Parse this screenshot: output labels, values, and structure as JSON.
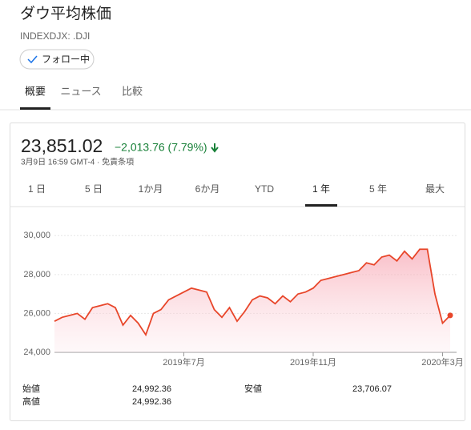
{
  "header": {
    "title": "ダウ平均株価",
    "symbol": "INDEXDJX: .DJI",
    "follow": "フォロー中"
  },
  "tabs": [
    "概要",
    "ニュース",
    "比較"
  ],
  "quote": {
    "price": "23,851.02",
    "change": "−2,013.76 (7.79%)",
    "time": "3月9日 16:59 GMT-4 · 免責条項"
  },
  "ranges": [
    "1 日",
    "5 日",
    "1か月",
    "6か月",
    "YTD",
    "1 年",
    "5 年",
    "最大"
  ],
  "chart_data": {
    "type": "line",
    "color": "#e8462a",
    "categories": [
      null,
      null,
      null,
      null,
      null,
      null,
      null,
      null,
      null,
      null,
      null,
      null,
      null,
      null,
      null,
      null,
      null,
      "2019年7月",
      null,
      null,
      null,
      null,
      null,
      null,
      null,
      null,
      null,
      null,
      null,
      null,
      null,
      null,
      null,
      null,
      "2019年11月",
      null,
      null,
      null,
      null,
      null,
      null,
      null,
      null,
      null,
      null,
      null,
      null,
      null,
      null,
      null,
      null,
      "2020年3月",
      null
    ],
    "values": [
      25600,
      25800,
      25900,
      26000,
      25700,
      26300,
      26400,
      26500,
      26300,
      25400,
      25900,
      25500,
      24900,
      26000,
      26200,
      26700,
      26900,
      27100,
      27300,
      27200,
      27100,
      26200,
      25800,
      26300,
      25600,
      26100,
      26700,
      26900,
      26800,
      26500,
      26900,
      26600,
      27000,
      27100,
      27300,
      27700,
      27800,
      27900,
      28000,
      28100,
      28200,
      28600,
      28500,
      28900,
      29000,
      28700,
      29200,
      28800,
      29300,
      29300,
      27000,
      25500,
      25900
    ],
    "ylim": [
      24000,
      31000
    ],
    "yticks": [
      {
        "value": 24000,
        "label": "24,000"
      },
      {
        "value": 26000,
        "label": "26,000"
      },
      {
        "value": 28000,
        "label": "28,000"
      },
      {
        "value": 30000,
        "label": "30,000"
      }
    ],
    "grid": true
  },
  "stats": [
    {
      "label": "始値",
      "value": "24,992.36"
    },
    {
      "label": "安値",
      "value": "23,706.07"
    },
    {
      "label": "高値",
      "value": "24,992.36"
    }
  ]
}
